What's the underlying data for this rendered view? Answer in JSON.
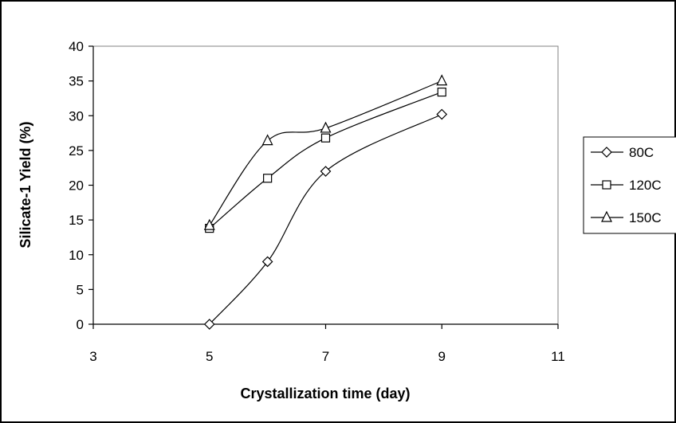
{
  "chart_data": {
    "type": "scatter",
    "title": "",
    "xlabel": "Crystallization time (day)",
    "ylabel": "Silicate-1 Yield (%)",
    "xlim": [
      3,
      11
    ],
    "ylim": [
      0,
      40
    ],
    "xticks": [
      3,
      5,
      7,
      9,
      11
    ],
    "yticks": [
      0,
      5,
      10,
      15,
      20,
      25,
      30,
      35,
      40
    ],
    "grid": false,
    "smoothed_lines": true,
    "legend_position": "right",
    "series": [
      {
        "name": "80C",
        "marker": "diamond",
        "x": [
          5,
          6,
          7,
          9
        ],
        "y": [
          0,
          9,
          22,
          30.2
        ]
      },
      {
        "name": "120C",
        "marker": "square",
        "x": [
          5,
          6,
          7,
          9
        ],
        "y": [
          13.8,
          21,
          26.8,
          33.4
        ]
      },
      {
        "name": "150C",
        "marker": "triangle",
        "x": [
          5,
          6,
          7,
          9
        ],
        "y": [
          14.2,
          26.4,
          28.2,
          35
        ]
      }
    ]
  }
}
